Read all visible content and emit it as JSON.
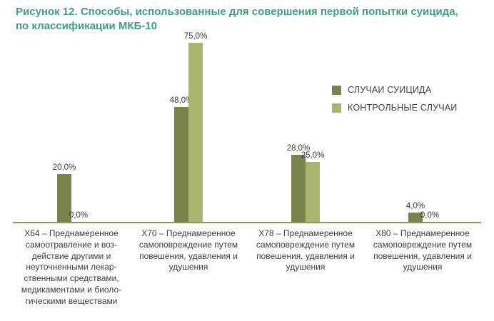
{
  "title": "Рисунок 12. Способы, использованные для совершения первой попытки суицида, по классификации МКБ-10",
  "colors": {
    "title_text": "#3f9d89",
    "axis_line": "#8b9459",
    "label_text": "#3c3c3c",
    "series_suicide": "#78854e",
    "series_control": "#a9b46e"
  },
  "chart_data": {
    "type": "bar",
    "title": "Рисунок 12. Способы, использованные для совершения первой попытки суицида, по классификации МКБ-10",
    "categories": [
      "X64 – Преднамеренное\nсамоотравление и воз-\nдействие другими и\nнеуточненными лекар-\nственными средствами,\nмедикаментами и биоло-\nгическими веществами",
      "X70 – Преднамеренное\nсамоповреждение путем\nповешения, удавления и\nудушения",
      "X78 – Преднамеренное\nсамоповреждение путем\nповешения, удавления и\nудушения",
      "X80 – Преднамеренное\nсамоповреждение путем\nповешения, удавления и\nудушения"
    ],
    "series": [
      {
        "name": "СЛУЧАИ СУИЦИДА",
        "color": "#78854e",
        "values": [
          20.0,
          48.0,
          28.0,
          4.0
        ],
        "value_labels": [
          "20,0%",
          "48,0%",
          "28,0%",
          "4,0%"
        ]
      },
      {
        "name": "КОНТРОЛЬНЫЕ СЛУЧАИ",
        "color": "#a9b46e",
        "values": [
          0.0,
          75.0,
          25.0,
          0.0
        ],
        "value_labels": [
          "0,0%",
          "75,0%",
          "25,0%",
          "0,0%"
        ]
      }
    ],
    "xlabel": "",
    "ylabel": "",
    "ylim": [
      0,
      80
    ],
    "grid": false,
    "y_axis_visible": false,
    "legend_position": "right",
    "value_labels_shown": true
  }
}
